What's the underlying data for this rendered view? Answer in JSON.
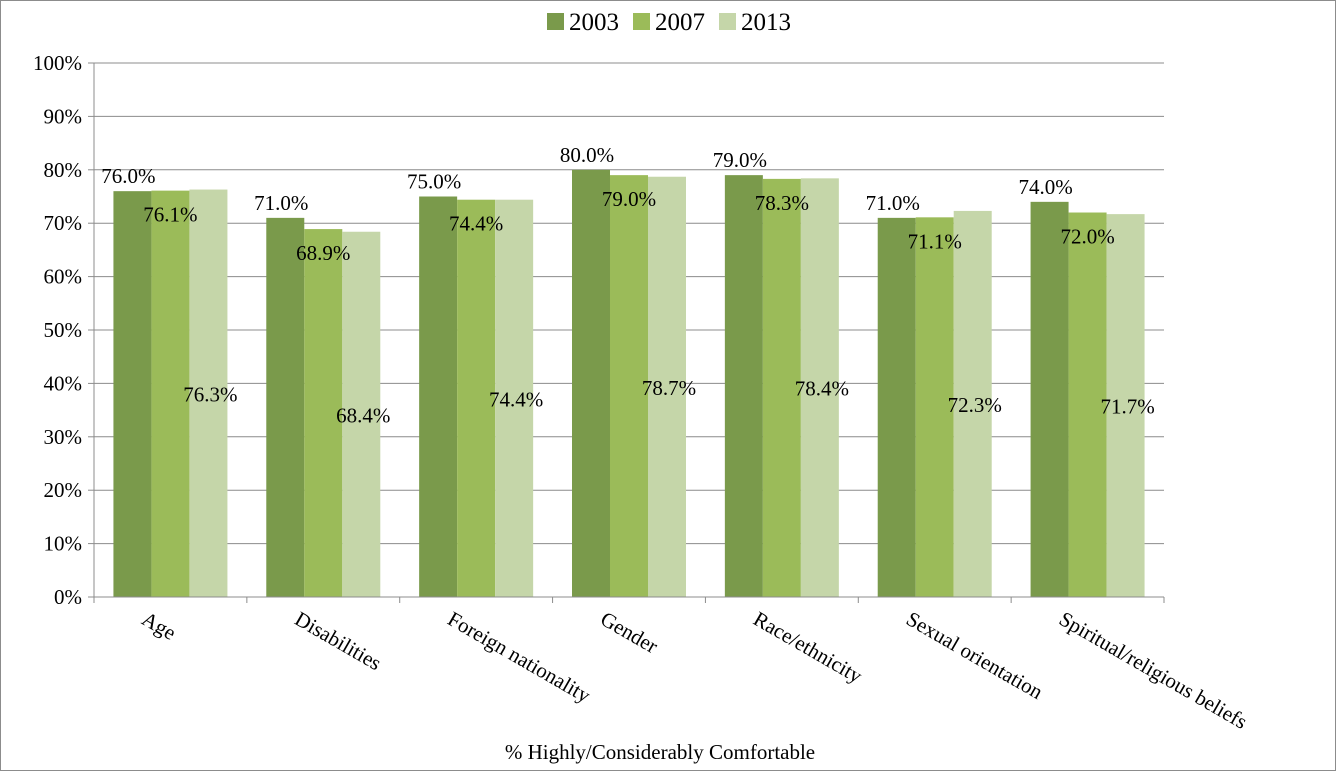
{
  "chart_data": {
    "type": "bar",
    "title": "",
    "xlabel": "% Highly/Considerably Comfortable",
    "ylabel": "",
    "ylim": [
      0,
      100
    ],
    "ytick_values": [
      0,
      10,
      20,
      30,
      40,
      50,
      60,
      70,
      80,
      90,
      100
    ],
    "yticks": [
      "0%",
      "10%",
      "20%",
      "30%",
      "40%",
      "50%",
      "60%",
      "70%",
      "80%",
      "90%",
      "100%"
    ],
    "grid": true,
    "legend_position": "top",
    "categories": [
      "Age",
      "Disabilities",
      "Foreign nationality",
      "Gender",
      "Race/ethnicity",
      "Sexual orientation",
      "Spiritual/religious beliefs"
    ],
    "series": [
      {
        "name": "2003",
        "color": "#7a9a4b",
        "values": [
          76.0,
          71.0,
          75.0,
          80.0,
          79.0,
          71.0,
          74.0
        ],
        "labels": [
          "76.0%",
          "71.0%",
          "75.0%",
          "80.0%",
          "79.0%",
          "71.0%",
          "74.0%"
        ]
      },
      {
        "name": "2007",
        "color": "#9bbb59",
        "values": [
          76.1,
          68.9,
          74.4,
          79.0,
          78.3,
          71.1,
          72.0
        ],
        "labels": [
          "76.1%",
          "68.9%",
          "74.4%",
          "79.0%",
          "78.3%",
          "71.1%",
          "72.0%"
        ]
      },
      {
        "name": "2013",
        "color": "#c5d6a9",
        "values": [
          76.3,
          68.4,
          74.4,
          78.7,
          78.4,
          72.3,
          71.7
        ],
        "labels": [
          "76.3%",
          "68.4%",
          "74.4%",
          "78.7%",
          "78.4%",
          "72.3%",
          "71.7%"
        ]
      }
    ]
  }
}
